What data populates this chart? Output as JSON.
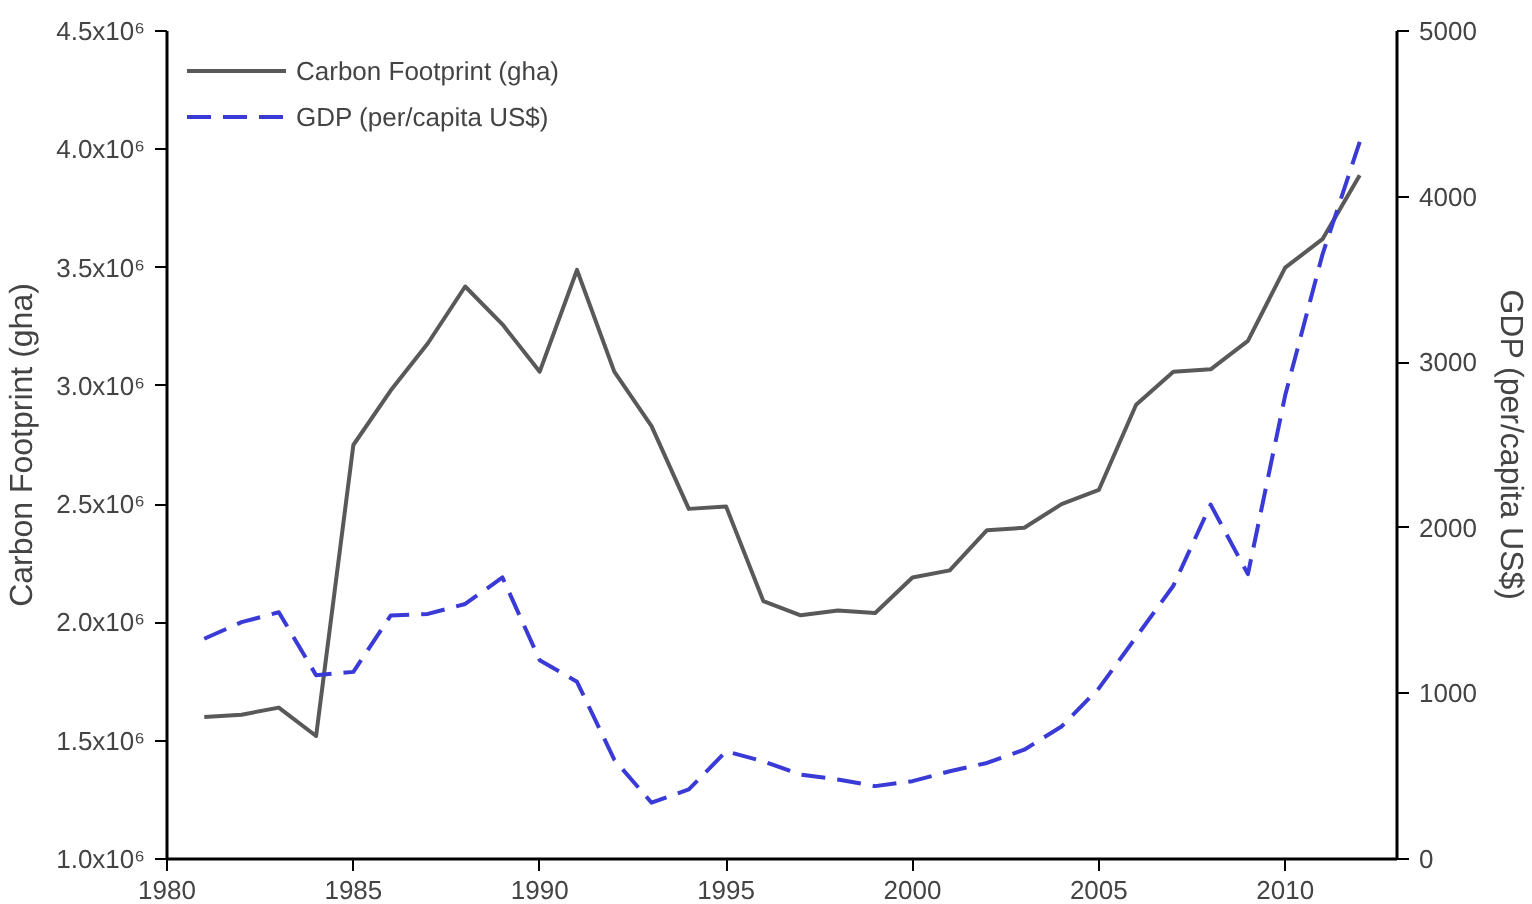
{
  "chart_data": {
    "type": "line",
    "ylabel": "Carbon Footprint (gha)",
    "y2label": "GDP (per/capita US$)",
    "x": [
      1981,
      1982,
      1983,
      1984,
      1985,
      1986,
      1987,
      1988,
      1989,
      1990,
      1991,
      1992,
      1993,
      1994,
      1995,
      1996,
      1997,
      1998,
      1999,
      2000,
      2001,
      2002,
      2003,
      2004,
      2005,
      2006,
      2007,
      2008,
      2009,
      2010,
      2011,
      2012
    ],
    "series": [
      {
        "name": "Carbon Footprint (gha)",
        "color": "#595959",
        "line_style": "solid",
        "values": [
          1600000,
          1610000,
          1640000,
          1520000,
          2750000,
          2980000,
          3180000,
          3420000,
          3260000,
          3060000,
          3490000,
          3060000,
          2830000,
          2480000,
          2490000,
          2090000,
          2030000,
          2050000,
          2040000,
          2190000,
          2220000,
          2390000,
          2400000,
          2500000,
          2560000,
          2920000,
          3060000,
          3070000,
          3190000,
          3500000,
          3620000,
          3890000
        ]
      },
      {
        "name": "GDP (per/capita US$)",
        "color": "#3a3ad6",
        "line_style": "dashed",
        "axis": "y2",
        "values": [
          1330,
          1430,
          1490,
          1110,
          1130,
          1470,
          1480,
          1540,
          1700,
          1200,
          1070,
          600,
          340,
          420,
          650,
          590,
          510,
          480,
          440,
          470,
          530,
          580,
          660,
          800,
          1030,
          1340,
          1650,
          2140,
          1720,
          2800,
          3650,
          4330
        ]
      }
    ],
    "xlim": [
      1980,
      2013
    ],
    "xticks": [
      1980,
      1985,
      1990,
      1995,
      2000,
      2005,
      2010
    ],
    "ylim": [
      1000000,
      4500000
    ],
    "yticks": [
      {
        "value": 1000000,
        "label": "1.0x10⁶"
      },
      {
        "value": 1500000,
        "label": "1.5x10⁶"
      },
      {
        "value": 2000000,
        "label": "2.0x10⁶"
      },
      {
        "value": 2500000,
        "label": "2.5x10⁶"
      },
      {
        "value": 3000000,
        "label": "3.0x10⁶"
      },
      {
        "value": 3500000,
        "label": "3.5x10⁶"
      },
      {
        "value": 4000000,
        "label": "4.0x10⁶"
      },
      {
        "value": 4500000,
        "label": "4.5x10⁶"
      }
    ],
    "y2lim": [
      0,
      5000
    ],
    "y2ticks": [
      0,
      1000,
      2000,
      3000,
      4000,
      5000
    ],
    "legend": "top left",
    "grid": false,
    "marker": "none"
  }
}
